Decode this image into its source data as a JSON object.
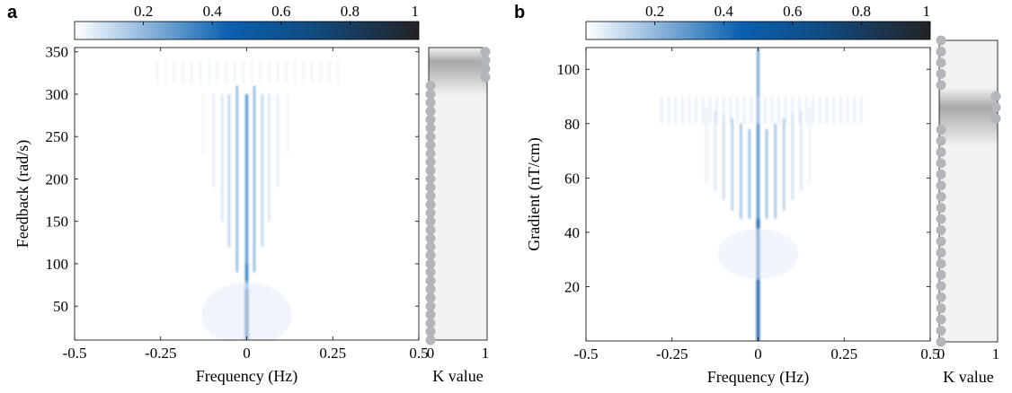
{
  "colors": {
    "colormap": [
      "#ffffff",
      "#0a60b0",
      "#222222"
    ],
    "gray_bar_light": "#f2f2f2",
    "gray_bar_dark": "#a8a8a8",
    "marker": "#b2b6bb"
  },
  "chart_data": [
    {
      "panel": "a",
      "type": "heatmap",
      "xlabel": "Frequency (Hz)",
      "ylabel": "Feedback (rad/s)",
      "xlim": [
        -0.5,
        0.5
      ],
      "ylim": [
        10,
        355
      ],
      "xticks": [
        -0.5,
        -0.25,
        0,
        0.25,
        0.5
      ],
      "xtick_labels": [
        "-0.5",
        "-0.25",
        "0",
        "0.25",
        "0.5"
      ],
      "yticks": [
        50,
        100,
        150,
        200,
        250,
        300,
        350
      ],
      "ytick_labels": [
        "50",
        "100",
        "150",
        "200",
        "250",
        "300",
        "350"
      ],
      "colorbar": {
        "range": [
          0,
          1
        ],
        "ticks": [
          "0.2",
          "0.4",
          "0.6",
          "0.8",
          "1"
        ]
      },
      "k_panel": {
        "xlabel": "K value",
        "xticks": [
          "0",
          "1"
        ],
        "k0_y": [
          10,
          20,
          30,
          40,
          50,
          60,
          70,
          80,
          90,
          100,
          110,
          120,
          130,
          140,
          150,
          160,
          170,
          180,
          190,
          200,
          210,
          220,
          230,
          240,
          250,
          260,
          270,
          280,
          290,
          300,
          310
        ],
        "k1_y": [
          320,
          330,
          340,
          350
        ],
        "gradient_center": 338,
        "gradient_width": 40
      }
    },
    {
      "panel": "b",
      "type": "heatmap",
      "xlabel": "Frequency (Hz)",
      "ylabel": "Gradient (nT/cm)",
      "xlim": [
        -0.5,
        0.5
      ],
      "ylim": [
        0,
        108
      ],
      "xticks": [
        -0.5,
        -0.25,
        0,
        0.25,
        0.5
      ],
      "xtick_labels": [
        "-0.5",
        "-0.25",
        "0",
        "0.25",
        "0.5"
      ],
      "yticks": [
        20,
        40,
        60,
        80,
        100
      ],
      "ytick_labels": [
        "20",
        "40",
        "60",
        "80",
        "100"
      ],
      "colorbar": {
        "range": [
          0,
          1
        ],
        "ticks": [
          "0.2",
          "0.4",
          "0.6",
          "0.8",
          "1"
        ]
      },
      "k_panel": {
        "xlabel": "K value",
        "xticks": [
          "0",
          "1"
        ],
        "k0_y": [
          0,
          4,
          8,
          12,
          16,
          20,
          24,
          28,
          32,
          36,
          40,
          44,
          48,
          52,
          56,
          60,
          64,
          68,
          72,
          76,
          92,
          96,
          100,
          104,
          108
        ],
        "k1_y": [
          80,
          84,
          88
        ],
        "gradient_center": 84,
        "gradient_width": 14
      }
    }
  ]
}
